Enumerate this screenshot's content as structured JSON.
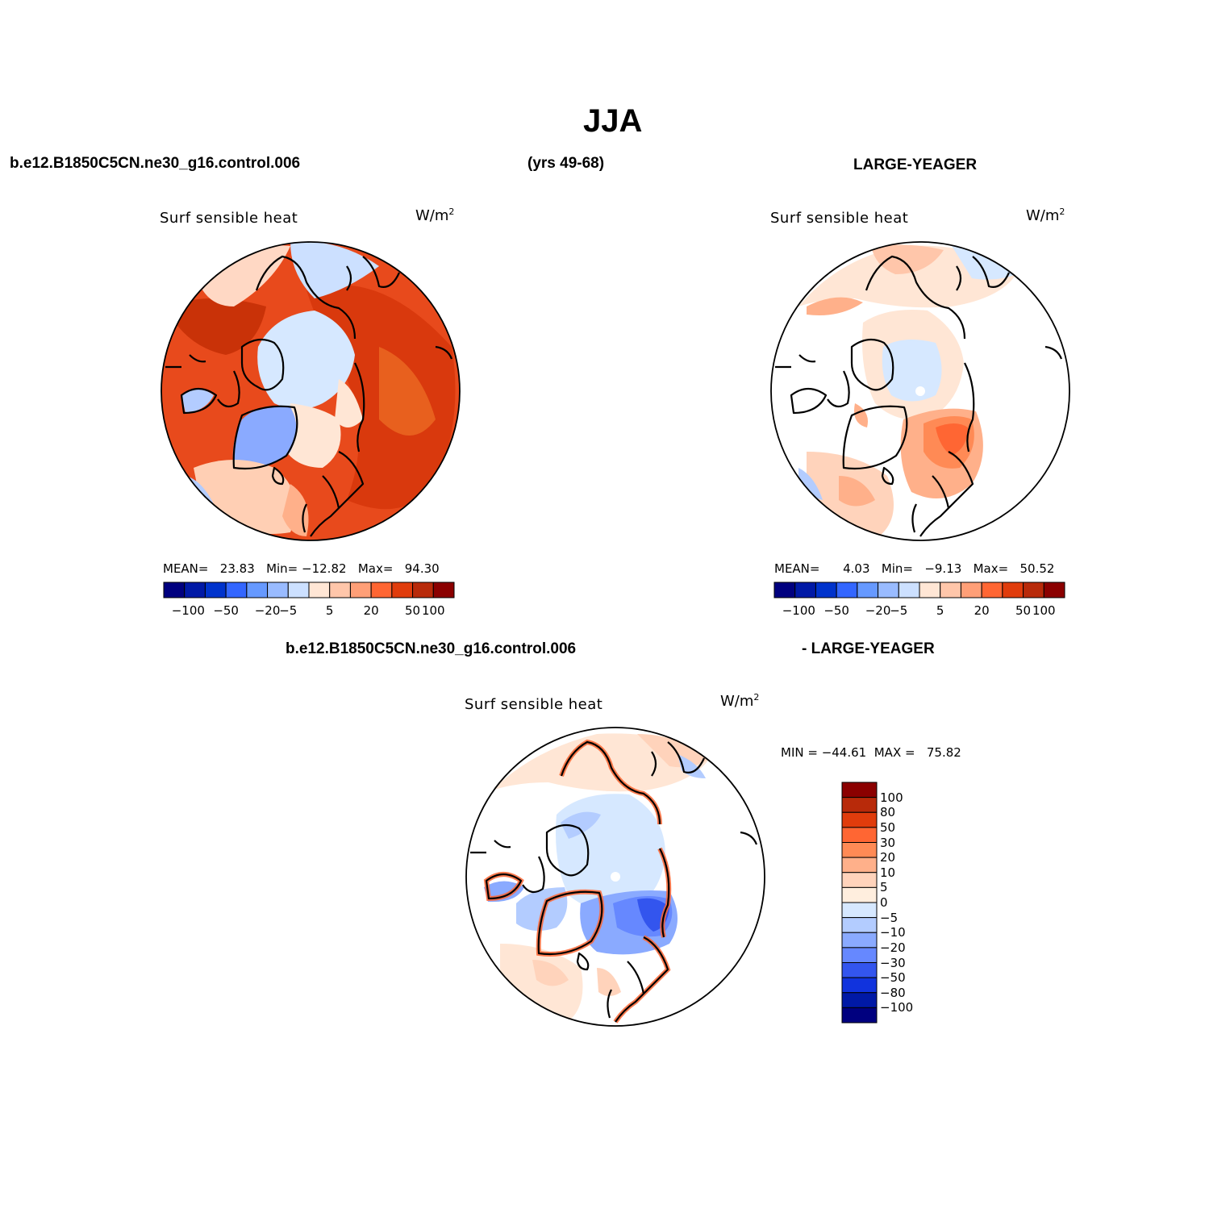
{
  "page": {
    "title": "JJA",
    "case_name": "b.e12.B1850C5CN.ne30_g16.control.006",
    "years": "(yrs 49-68)",
    "obs_name": "LARGE-YEAGER",
    "diff_left": "b.e12.B1850C5CN.ne30_g16.control.006",
    "diff_right": "- LARGE-YEAGER"
  },
  "panels": [
    {
      "label": "Surf sensible heat",
      "units_base": "W/m",
      "units_sup": "2",
      "mean_label": "MEAN=",
      "mean": "23.83",
      "min_label": "Min=",
      "min": "−12.82",
      "max_label": "Max=",
      "max": "94.30"
    },
    {
      "label": "Surf sensible heat",
      "units_base": "W/m",
      "units_sup": "2",
      "mean_label": "MEAN=",
      "mean": "4.03",
      "min_label": "Min=",
      "min": "−9.13",
      "max_label": "Max=",
      "max": "50.52"
    },
    {
      "label": "Surf sensible heat",
      "units_base": "W/m",
      "units_sup": "2",
      "minmax": "MIN = −44.61  MAX =   75.82"
    }
  ],
  "colorbar_horizontal": {
    "colors": [
      "#00007f",
      "#0019a6",
      "#0033cc",
      "#3366ff",
      "#6699ff",
      "#99bbff",
      "#cce0ff",
      "#ffe6d5",
      "#ffc6aa",
      "#ff9f77",
      "#ff6633",
      "#e03c0c",
      "#b82a0a",
      "#8b0000"
    ],
    "tick_labels": [
      "−100",
      "−50",
      "−20",
      "−5",
      "5",
      "20",
      "50",
      "100"
    ]
  },
  "colorbar_vertical": {
    "colors_top_to_bottom": [
      "#8b0000",
      "#b82a0a",
      "#e03c0c",
      "#ff6633",
      "#ff8a55",
      "#ffb08a",
      "#ffd3bb",
      "#ffeede",
      "#d6e8ff",
      "#b3ccff",
      "#8aaaff",
      "#6688ff",
      "#3355ee",
      "#1133dd",
      "#0019a6",
      "#00007f"
    ],
    "tick_labels": [
      "100",
      "80",
      "50",
      "30",
      "20",
      "10",
      "5",
      "0",
      "−5",
      "−10",
      "−20",
      "−30",
      "−50",
      "−80",
      "−100"
    ]
  },
  "maps": [
    {
      "name": "model",
      "background": "#e0441a"
    },
    {
      "name": "obs",
      "background": "#ffffff"
    },
    {
      "name": "difference",
      "background": "#ffffff"
    }
  ]
}
